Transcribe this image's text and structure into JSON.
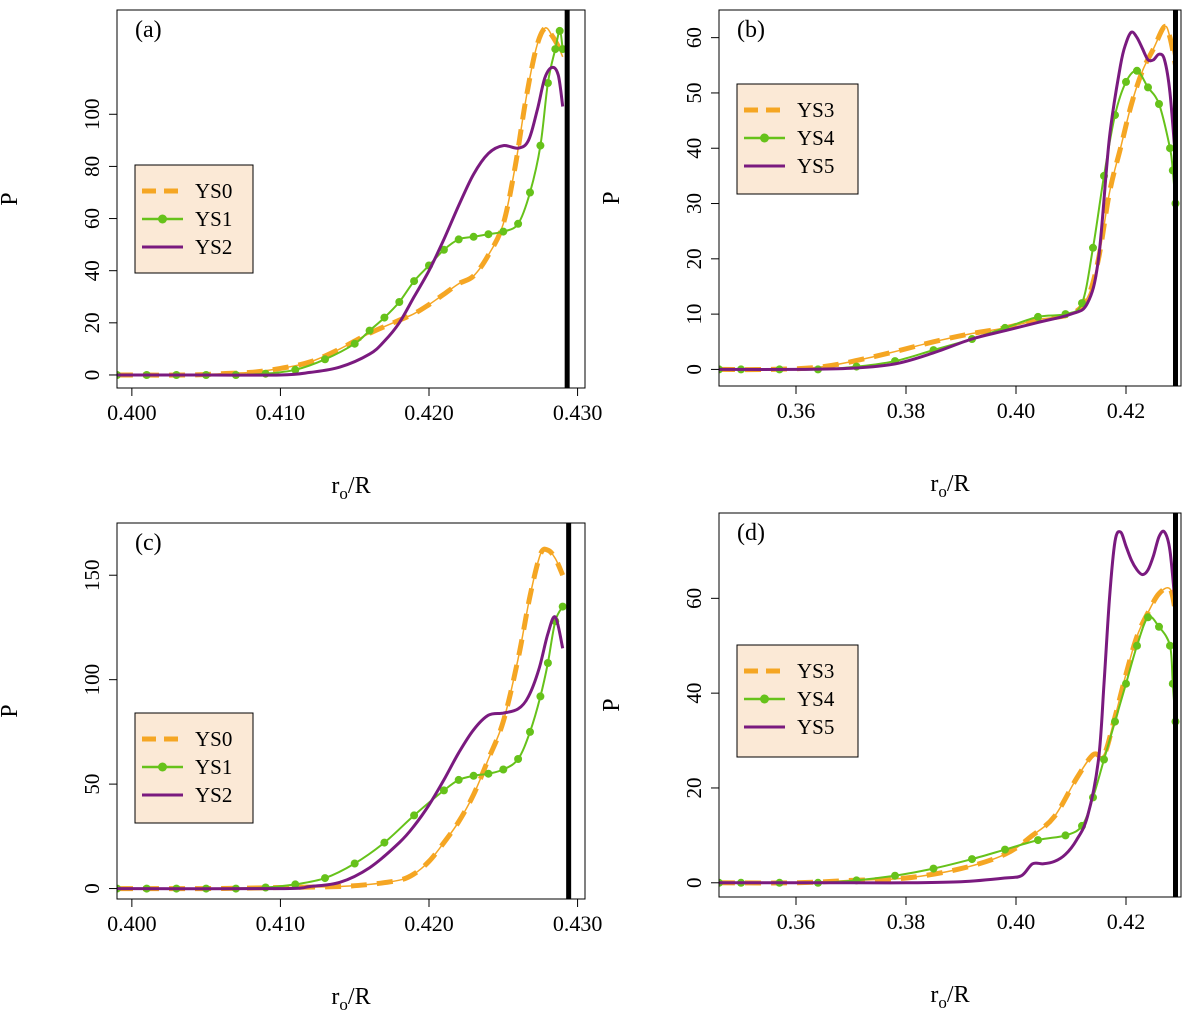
{
  "colors": {
    "series_orange": "#f5a623",
    "series_green": "#66c21a",
    "series_purple": "#7a1a7f",
    "legend_bg": "#fbe9d6",
    "frame": "#000000"
  },
  "chart_data": [
    {
      "type": "line",
      "panel_label": "(a)",
      "xlabel": "r",
      "xlabel_sub": "o",
      "xlabel_tail": "/R",
      "ylabel": "P",
      "xlim": [
        0.399,
        0.4305
      ],
      "ylim": [
        -5,
        140
      ],
      "xticks": [
        0.4,
        0.41,
        0.42,
        0.43
      ],
      "xtick_labels": [
        "0.400",
        "0.410",
        "0.420",
        "0.430"
      ],
      "yticks": [
        0,
        20,
        40,
        60,
        80,
        100
      ],
      "ytick_labels": [
        "0",
        "20",
        "40",
        "60",
        "80",
        "100"
      ],
      "vline": 0.4293,
      "legend_position": "middle-left",
      "series": [
        {
          "name": "YS0",
          "style": "dashed-thin",
          "x": [
            0.399,
            0.404,
            0.406,
            0.408,
            0.41,
            0.412,
            0.414,
            0.416,
            0.418,
            0.419,
            0.42,
            0.421,
            0.422,
            0.423,
            0.424,
            0.425,
            0.4258,
            0.4265,
            0.4272,
            0.4278,
            0.4283,
            0.4287,
            0.429
          ],
          "y": [
            0,
            0,
            0.5,
            1,
            2.5,
            5,
            10,
            16,
            21,
            23.5,
            27,
            31,
            35,
            38,
            46,
            58,
            80,
            105,
            125,
            133,
            130,
            126,
            122
          ]
        },
        {
          "name": "YS1",
          "style": "dots",
          "x": [
            0.399,
            0.401,
            0.403,
            0.405,
            0.407,
            0.409,
            0.411,
            0.413,
            0.415,
            0.416,
            0.417,
            0.418,
            0.419,
            0.42,
            0.421,
            0.422,
            0.423,
            0.424,
            0.425,
            0.426,
            0.4268,
            0.4275,
            0.428,
            0.4285,
            0.4288,
            0.429
          ],
          "y": [
            0,
            0,
            0,
            0,
            0,
            0.5,
            2,
            6,
            12,
            17,
            22,
            28,
            36,
            42,
            48,
            52,
            53,
            54,
            55,
            58,
            70,
            88,
            112,
            125,
            132,
            125
          ]
        },
        {
          "name": "YS2",
          "style": "solid",
          "x": [
            0.399,
            0.405,
            0.41,
            0.412,
            0.414,
            0.416,
            0.417,
            0.418,
            0.419,
            0.42,
            0.421,
            0.422,
            0.423,
            0.424,
            0.425,
            0.426,
            0.4267,
            0.4273,
            0.4278,
            0.4283,
            0.4287,
            0.429
          ],
          "y": [
            0,
            0,
            0,
            1,
            3,
            8,
            13,
            20,
            30,
            40,
            52,
            65,
            77,
            85,
            88,
            87,
            90,
            102,
            114,
            118,
            115,
            103
          ]
        }
      ],
      "legend_entries": [
        "YS0",
        "YS1",
        "YS2"
      ]
    },
    {
      "type": "line",
      "panel_label": "(b)",
      "xlabel": "r",
      "xlabel_sub": "o",
      "xlabel_tail": "/R",
      "ylabel": "P",
      "xlim": [
        0.346,
        0.43
      ],
      "ylim": [
        -3,
        65
      ],
      "xticks": [
        0.36,
        0.38,
        0.4,
        0.42
      ],
      "xtick_labels": [
        "0.36",
        "0.38",
        "0.40",
        "0.42"
      ],
      "yticks": [
        0,
        10,
        20,
        30,
        40,
        50,
        60
      ],
      "ytick_labels": [
        "0",
        "10",
        "20",
        "30",
        "40",
        "50",
        "60"
      ],
      "vline": 0.429,
      "legend_position": "top-left",
      "series": [
        {
          "name": "YS3",
          "style": "dashed-thin",
          "x": [
            0.346,
            0.355,
            0.365,
            0.375,
            0.385,
            0.392,
            0.398,
            0.404,
            0.41,
            0.413,
            0.415,
            0.417,
            0.419,
            0.421,
            0.423,
            0.425,
            0.427,
            0.428,
            0.429
          ],
          "y": [
            0,
            0,
            0.5,
            2.5,
            5,
            6.5,
            7.5,
            9,
            10,
            13,
            20,
            32,
            40,
            48,
            54,
            58,
            62,
            60,
            55
          ]
        },
        {
          "name": "YS4",
          "style": "dots",
          "x": [
            0.346,
            0.35,
            0.357,
            0.364,
            0.371,
            0.378,
            0.385,
            0.392,
            0.398,
            0.404,
            0.409,
            0.412,
            0.414,
            0.416,
            0.418,
            0.42,
            0.422,
            0.424,
            0.426,
            0.428,
            0.4285,
            0.429
          ],
          "y": [
            0,
            0,
            0,
            0,
            0.5,
            1.5,
            3.5,
            5.5,
            7.5,
            9.5,
            10,
            12,
            22,
            35,
            46,
            52,
            54,
            51,
            48,
            40,
            36,
            30
          ]
        },
        {
          "name": "YS5",
          "style": "solid",
          "x": [
            0.346,
            0.36,
            0.37,
            0.378,
            0.385,
            0.392,
            0.398,
            0.404,
            0.41,
            0.413,
            0.415,
            0.417,
            0.419,
            0.42,
            0.421,
            0.422,
            0.423,
            0.424,
            0.425,
            0.426,
            0.427,
            0.428,
            0.429
          ],
          "y": [
            0,
            0,
            0.2,
            1,
            3,
            5.5,
            7,
            8.5,
            10,
            12,
            20,
            42,
            55,
            59,
            61,
            60,
            58,
            56,
            56,
            57,
            56,
            50,
            38
          ]
        }
      ],
      "legend_entries": [
        "YS3",
        "YS4",
        "YS5"
      ]
    },
    {
      "type": "line",
      "panel_label": "(c)",
      "xlabel": "r",
      "xlabel_sub": "o",
      "xlabel_tail": "/R",
      "ylabel": "P",
      "xlim": [
        0.399,
        0.4305
      ],
      "ylim": [
        -5,
        175
      ],
      "xticks": [
        0.4,
        0.41,
        0.42,
        0.43
      ],
      "xtick_labels": [
        "0.400",
        "0.410",
        "0.420",
        "0.430"
      ],
      "yticks": [
        0,
        50,
        100,
        150
      ],
      "ytick_labels": [
        "0",
        "50",
        "100",
        "150"
      ],
      "vline": 0.4294,
      "legend_position": "middle-left",
      "series": [
        {
          "name": "YS0",
          "style": "dashed-thin",
          "x": [
            0.399,
            0.405,
            0.41,
            0.414,
            0.416,
            0.418,
            0.419,
            0.42,
            0.421,
            0.422,
            0.423,
            0.424,
            0.425,
            0.426,
            0.4268,
            0.4275,
            0.428,
            0.4285,
            0.429
          ],
          "y": [
            0,
            0,
            0.5,
            1,
            2,
            4,
            7,
            13,
            22,
            32,
            45,
            62,
            80,
            110,
            140,
            160,
            162,
            158,
            150
          ]
        },
        {
          "name": "YS1",
          "style": "dots",
          "x": [
            0.399,
            0.401,
            0.403,
            0.405,
            0.407,
            0.409,
            0.411,
            0.413,
            0.415,
            0.417,
            0.419,
            0.421,
            0.422,
            0.423,
            0.424,
            0.425,
            0.426,
            0.4268,
            0.4275,
            0.428,
            0.4285,
            0.429
          ],
          "y": [
            0,
            0,
            0,
            0,
            0,
            0.5,
            2,
            5,
            12,
            22,
            35,
            47,
            52,
            54,
            55,
            57,
            62,
            75,
            92,
            108,
            128,
            135
          ]
        },
        {
          "name": "YS2",
          "style": "solid",
          "x": [
            0.399,
            0.41,
            0.412,
            0.414,
            0.416,
            0.418,
            0.419,
            0.42,
            0.421,
            0.422,
            0.423,
            0.424,
            0.425,
            0.426,
            0.4267,
            0.4274,
            0.428,
            0.4285,
            0.429
          ],
          "y": [
            0,
            0,
            1,
            3,
            10,
            22,
            30,
            40,
            52,
            65,
            76,
            83,
            84,
            86,
            92,
            105,
            122,
            130,
            115
          ]
        }
      ],
      "legend_entries": [
        "YS0",
        "YS1",
        "YS2"
      ]
    },
    {
      "type": "line",
      "panel_label": "(d)",
      "xlabel": "r",
      "xlabel_sub": "o",
      "xlabel_tail": "/R",
      "ylabel": "P",
      "xlim": [
        0.346,
        0.43
      ],
      "ylim": [
        -3,
        78
      ],
      "xticks": [
        0.36,
        0.38,
        0.4,
        0.42
      ],
      "xtick_labels": [
        "0.36",
        "0.38",
        "0.40",
        "0.42"
      ],
      "yticks": [
        0,
        20,
        40,
        60
      ],
      "ytick_labels": [
        "0",
        "20",
        "40",
        "60"
      ],
      "vline": 0.429,
      "legend_position": "top-left",
      "series": [
        {
          "name": "YS3",
          "style": "dashed-thin",
          "x": [
            0.346,
            0.36,
            0.37,
            0.38,
            0.39,
            0.398,
            0.403,
            0.407,
            0.411,
            0.414,
            0.416,
            0.418,
            0.42,
            0.422,
            0.424,
            0.426,
            0.428,
            0.429
          ],
          "y": [
            0,
            0,
            0.5,
            1,
            3,
            6,
            10,
            14,
            22,
            27,
            27,
            35,
            44,
            52,
            57,
            61,
            62,
            57
          ]
        },
        {
          "name": "YS4",
          "style": "dots",
          "x": [
            0.346,
            0.35,
            0.357,
            0.364,
            0.371,
            0.378,
            0.385,
            0.392,
            0.398,
            0.404,
            0.409,
            0.412,
            0.414,
            0.416,
            0.418,
            0.42,
            0.422,
            0.424,
            0.426,
            0.428,
            0.4285,
            0.429
          ],
          "y": [
            0,
            0,
            0,
            0,
            0.5,
            1.5,
            3,
            5,
            7,
            9,
            10,
            12,
            18,
            26,
            34,
            42,
            50,
            56,
            54,
            50,
            42,
            34
          ]
        },
        {
          "name": "YS5",
          "style": "solid",
          "x": [
            0.346,
            0.37,
            0.38,
            0.39,
            0.398,
            0.401,
            0.403,
            0.405,
            0.407,
            0.409,
            0.411,
            0.413,
            0.415,
            0.416,
            0.417,
            0.418,
            0.419,
            0.42,
            0.421,
            0.422,
            0.423,
            0.424,
            0.425,
            0.426,
            0.427,
            0.428,
            0.429
          ],
          "y": [
            0,
            0,
            0,
            0.2,
            1,
            1.5,
            4,
            4,
            4.5,
            6,
            9,
            14,
            26,
            42,
            60,
            72,
            74,
            71,
            68,
            66,
            65,
            66,
            69,
            73,
            74,
            70,
            58
          ]
        }
      ],
      "legend_entries": [
        "YS3",
        "YS4",
        "YS5"
      ]
    }
  ]
}
